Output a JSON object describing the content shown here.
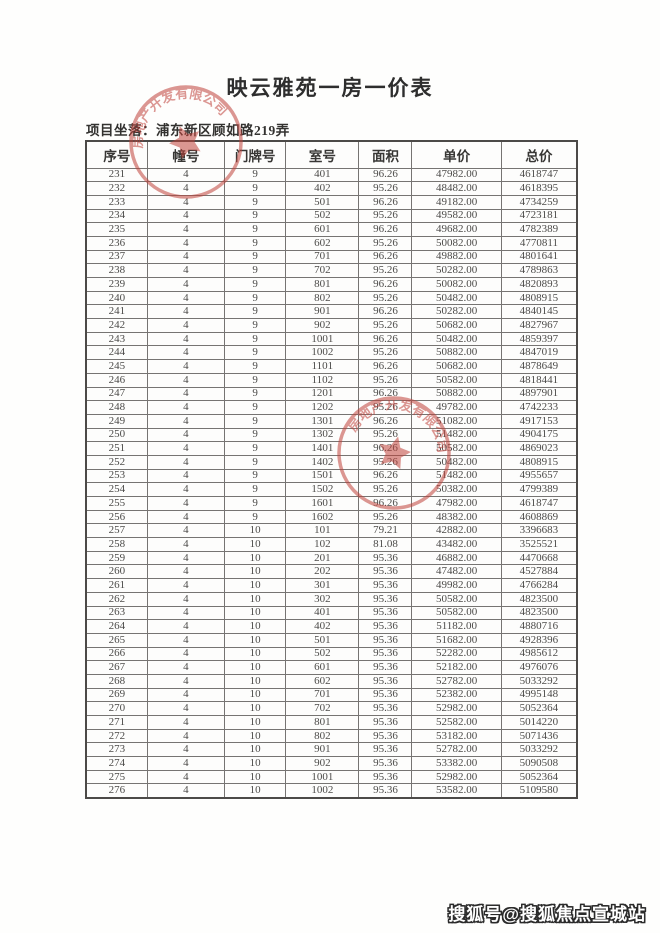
{
  "document": {
    "title": "映云雅苑一房一价表",
    "location_label": "项目坐落：",
    "location_value": "浦东新区顾如路219弄"
  },
  "table": {
    "headers": [
      "序号",
      "幢号",
      "门牌号",
      "室号",
      "面积",
      "单价",
      "总价"
    ],
    "rows": [
      [
        "231",
        "4",
        "9",
        "401",
        "96.26",
        "47982.00",
        "4618747"
      ],
      [
        "232",
        "4",
        "9",
        "402",
        "95.26",
        "48482.00",
        "4618395"
      ],
      [
        "233",
        "4",
        "9",
        "501",
        "96.26",
        "49182.00",
        "4734259"
      ],
      [
        "234",
        "4",
        "9",
        "502",
        "95.26",
        "49582.00",
        "4723181"
      ],
      [
        "235",
        "4",
        "9",
        "601",
        "96.26",
        "49682.00",
        "4782389"
      ],
      [
        "236",
        "4",
        "9",
        "602",
        "95.26",
        "50082.00",
        "4770811"
      ],
      [
        "237",
        "4",
        "9",
        "701",
        "96.26",
        "49882.00",
        "4801641"
      ],
      [
        "238",
        "4",
        "9",
        "702",
        "95.26",
        "50282.00",
        "4789863"
      ],
      [
        "239",
        "4",
        "9",
        "801",
        "96.26",
        "50082.00",
        "4820893"
      ],
      [
        "240",
        "4",
        "9",
        "802",
        "95.26",
        "50482.00",
        "4808915"
      ],
      [
        "241",
        "4",
        "9",
        "901",
        "96.26",
        "50282.00",
        "4840145"
      ],
      [
        "242",
        "4",
        "9",
        "902",
        "95.26",
        "50682.00",
        "4827967"
      ],
      [
        "243",
        "4",
        "9",
        "1001",
        "96.26",
        "50482.00",
        "4859397"
      ],
      [
        "244",
        "4",
        "9",
        "1002",
        "95.26",
        "50882.00",
        "4847019"
      ],
      [
        "245",
        "4",
        "9",
        "1101",
        "96.26",
        "50682.00",
        "4878649"
      ],
      [
        "246",
        "4",
        "9",
        "1102",
        "95.26",
        "50582.00",
        "4818441"
      ],
      [
        "247",
        "4",
        "9",
        "1201",
        "96.26",
        "50882.00",
        "4897901"
      ],
      [
        "248",
        "4",
        "9",
        "1202",
        "95.26",
        "49782.00",
        "4742233"
      ],
      [
        "249",
        "4",
        "9",
        "1301",
        "96.26",
        "51082.00",
        "4917153"
      ],
      [
        "250",
        "4",
        "9",
        "1302",
        "95.26",
        "51482.00",
        "4904175"
      ],
      [
        "251",
        "4",
        "9",
        "1401",
        "96.26",
        "50582.00",
        "4869023"
      ],
      [
        "252",
        "4",
        "9",
        "1402",
        "95.26",
        "50482.00",
        "4808915"
      ],
      [
        "253",
        "4",
        "9",
        "1501",
        "96.26",
        "51482.00",
        "4955657"
      ],
      [
        "254",
        "4",
        "9",
        "1502",
        "95.26",
        "50382.00",
        "4799389"
      ],
      [
        "255",
        "4",
        "9",
        "1601",
        "96.26",
        "47982.00",
        "4618747"
      ],
      [
        "256",
        "4",
        "9",
        "1602",
        "95.26",
        "48382.00",
        "4608869"
      ],
      [
        "257",
        "4",
        "10",
        "101",
        "79.21",
        "42882.00",
        "3396683"
      ],
      [
        "258",
        "4",
        "10",
        "102",
        "81.08",
        "43482.00",
        "3525521"
      ],
      [
        "259",
        "4",
        "10",
        "201",
        "95.36",
        "46882.00",
        "4470668"
      ],
      [
        "260",
        "4",
        "10",
        "202",
        "95.36",
        "47482.00",
        "4527884"
      ],
      [
        "261",
        "4",
        "10",
        "301",
        "95.36",
        "49982.00",
        "4766284"
      ],
      [
        "262",
        "4",
        "10",
        "302",
        "95.36",
        "50582.00",
        "4823500"
      ],
      [
        "263",
        "4",
        "10",
        "401",
        "95.36",
        "50582.00",
        "4823500"
      ],
      [
        "264",
        "4",
        "10",
        "402",
        "95.36",
        "51182.00",
        "4880716"
      ],
      [
        "265",
        "4",
        "10",
        "501",
        "95.36",
        "51682.00",
        "4928396"
      ],
      [
        "266",
        "4",
        "10",
        "502",
        "95.36",
        "52282.00",
        "4985612"
      ],
      [
        "267",
        "4",
        "10",
        "601",
        "95.36",
        "52182.00",
        "4976076"
      ],
      [
        "268",
        "4",
        "10",
        "602",
        "95.36",
        "52782.00",
        "5033292"
      ],
      [
        "269",
        "4",
        "10",
        "701",
        "95.36",
        "52382.00",
        "4995148"
      ],
      [
        "270",
        "4",
        "10",
        "702",
        "95.36",
        "52982.00",
        "5052364"
      ],
      [
        "271",
        "4",
        "10",
        "801",
        "95.36",
        "52582.00",
        "5014220"
      ],
      [
        "272",
        "4",
        "10",
        "802",
        "95.36",
        "53182.00",
        "5071436"
      ],
      [
        "273",
        "4",
        "10",
        "901",
        "95.36",
        "52782.00",
        "5033292"
      ],
      [
        "274",
        "4",
        "10",
        "902",
        "95.36",
        "53382.00",
        "5090508"
      ],
      [
        "275",
        "4",
        "10",
        "1001",
        "95.36",
        "52982.00",
        "5052364"
      ],
      [
        "276",
        "4",
        "10",
        "1002",
        "95.36",
        "53582.00",
        "5109580"
      ]
    ],
    "column_widths_pct": [
      12.5,
      15.7,
      12.5,
      14.9,
      10.8,
      18.2,
      15.4
    ]
  },
  "stamps": {
    "seal_text": "房地产开发有限公司",
    "seal_color": "#c0423b"
  },
  "watermark": {
    "text": "搜狐号@搜狐焦点宣城站"
  }
}
